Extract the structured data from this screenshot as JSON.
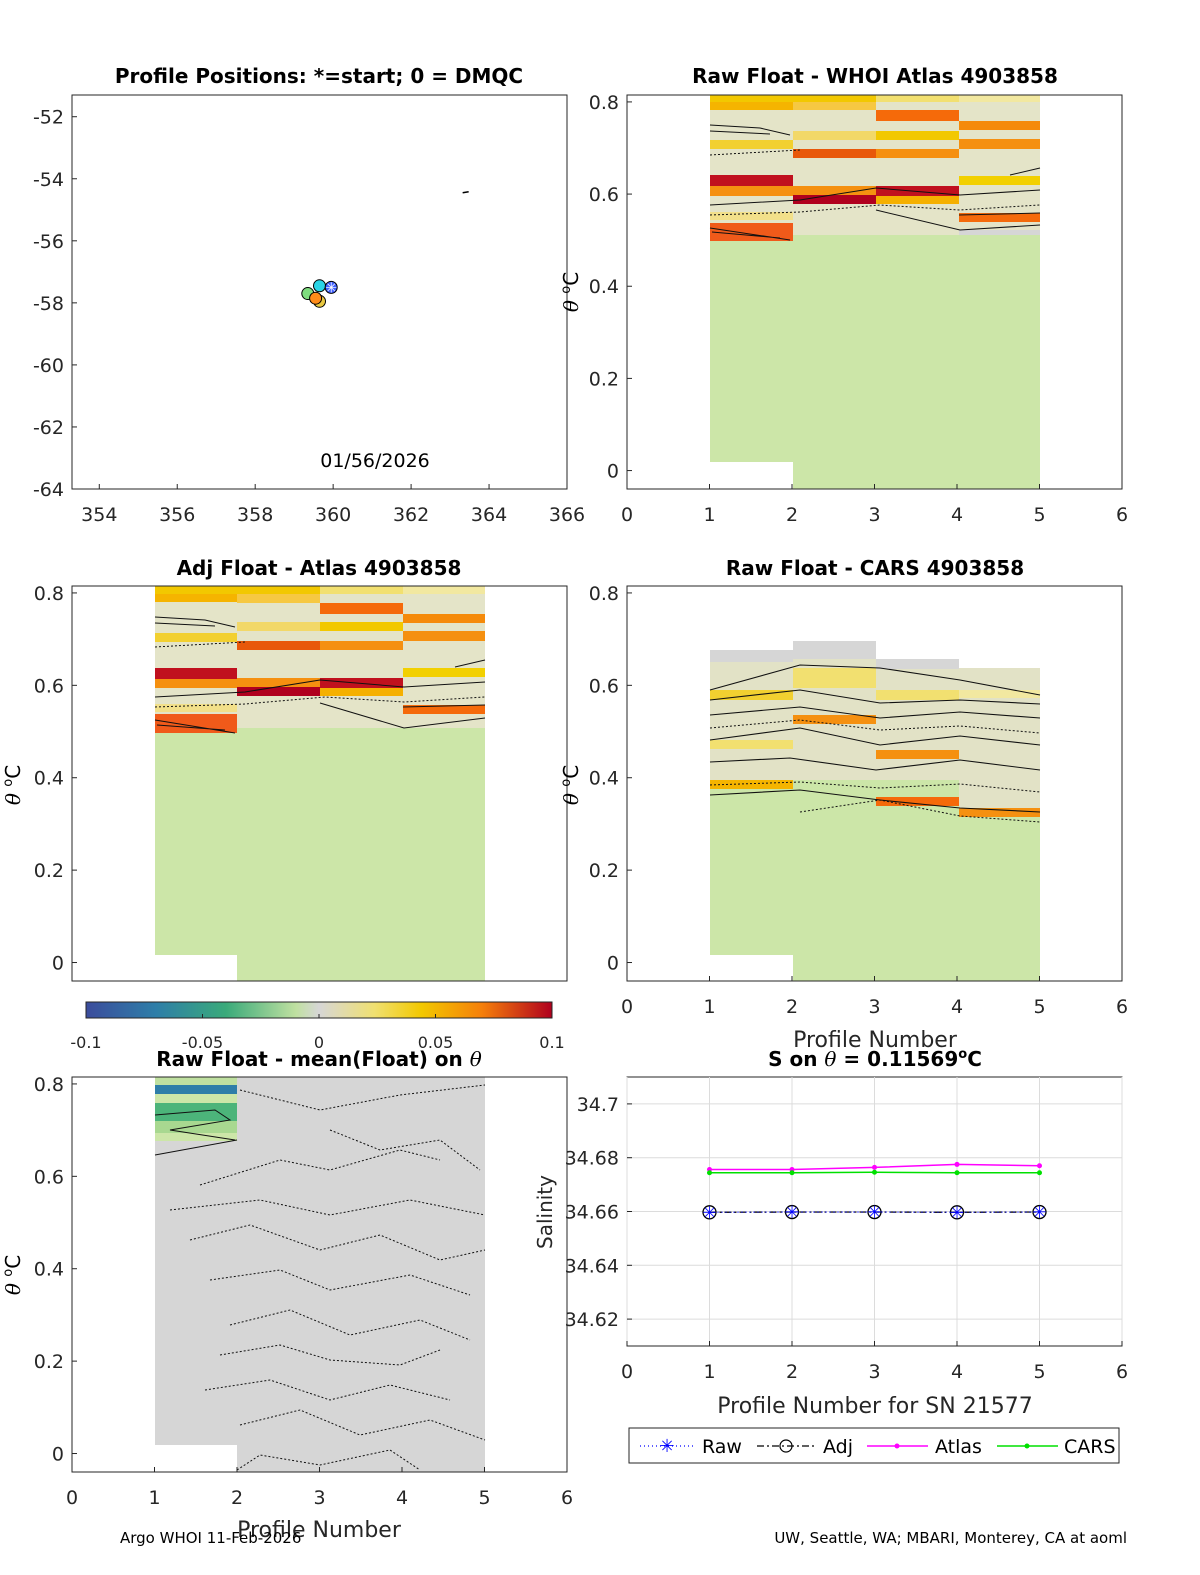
{
  "footer": {
    "left": "Argo WHOI 11-Feb-2026",
    "right": "UW, Seattle, WA; MBARI, Monterey, CA at aoml"
  },
  "colors": {
    "axis": "#262626",
    "grid": "#dcdcdc",
    "neutral": "#d6d6d6",
    "light_green": "#cce6a8",
    "raw_line": "#0000ff",
    "adj_line": "#1a1a40",
    "atlas_line": "#ff00ff",
    "cars_line": "#00e000"
  },
  "colorbar": {
    "min": -0.1,
    "max": 0.1,
    "tick_values": [
      -0.1,
      -0.05,
      0,
      0.05,
      0.1
    ],
    "tick_labels": [
      "-0.1",
      "-0.05",
      "0",
      "0.05",
      "0.1"
    ]
  },
  "chart_data": [
    {
      "id": "positions",
      "type": "scatter",
      "title": "Profile Positions: *=start; 0 = DMQC",
      "xlim": [
        353.3,
        366
      ],
      "ylim": [
        -64,
        -51.3
      ],
      "xticks": [
        354,
        356,
        358,
        360,
        362,
        364,
        366
      ],
      "yticks": [
        -52,
        -54,
        -56,
        -58,
        -60,
        -62,
        -64
      ],
      "annotation": "01/56/2026",
      "points": [
        {
          "lon": 359.35,
          "lat": -57.7,
          "color": "#7fdc7f"
        },
        {
          "lon": 359.65,
          "lat": -57.95,
          "color": "#e8c840"
        },
        {
          "lon": 359.55,
          "lat": -57.85,
          "color": "#ff8c1a"
        },
        {
          "lon": 359.65,
          "lat": -57.45,
          "color": "#2ad4e6"
        },
        {
          "lon": 359.95,
          "lat": -57.5,
          "color": "#4060ff",
          "marker": "start"
        }
      ],
      "contour_mark": {
        "lon": 363.4,
        "lat": -54.45
      }
    },
    {
      "id": "raw_whoi",
      "type": "heatmap",
      "title": "Raw Float - WHOI Atlas  4903858",
      "xlabel": "",
      "ylabel": "θ °C",
      "xlim": [
        0,
        6
      ],
      "ylim": [
        -0.04,
        0.815
      ],
      "xticks": [
        0,
        1,
        2,
        3,
        4,
        5,
        6
      ],
      "yticks": [
        0,
        0.2,
        0.4,
        0.6,
        0.8
      ],
      "ytick_labels": [
        "0",
        "0.2",
        "0.4",
        "0.6",
        "0.8"
      ]
    },
    {
      "id": "adj_atlas",
      "type": "heatmap",
      "title": "Adj Float - Atlas  4903858",
      "xlabel": "",
      "ylabel": "θ °C",
      "xlim": [
        0,
        5
      ],
      "ylim": [
        -0.04,
        0.815
      ],
      "xticks": [],
      "yticks": [
        0,
        0.2,
        0.4,
        0.6,
        0.8
      ],
      "ytick_labels": [
        "0",
        "0.2",
        "0.4",
        "0.6",
        "0.8"
      ]
    },
    {
      "id": "raw_cars",
      "type": "heatmap",
      "title": "Raw Float - CARS  4903858",
      "xlabel": "Profile Number",
      "ylabel": "θ °C",
      "xlim": [
        0,
        6
      ],
      "ylim": [
        -0.04,
        0.815
      ],
      "xticks": [
        0,
        1,
        2,
        3,
        4,
        5,
        6
      ],
      "yticks": [
        0,
        0.2,
        0.4,
        0.6,
        0.8
      ],
      "ytick_labels": [
        "0",
        "0.2",
        "0.4",
        "0.6",
        "0.8"
      ]
    },
    {
      "id": "raw_mean",
      "type": "heatmap",
      "title": "Raw Float - mean(Float) on θ",
      "xlabel": "Profile Number",
      "ylabel": "θ °C",
      "xlim": [
        0,
        6
      ],
      "ylim": [
        -0.04,
        0.815
      ],
      "xticks": [
        0,
        1,
        2,
        3,
        4,
        5,
        6
      ],
      "yticks": [
        0,
        0.2,
        0.4,
        0.6,
        0.8
      ],
      "ytick_labels": [
        "0",
        "0.2",
        "0.4",
        "0.6",
        "0.8"
      ]
    },
    {
      "id": "salinity",
      "type": "line",
      "title": "S on θ = 0.11569°C",
      "xlabel": "Profile Number for SN 21577",
      "ylabel": "Salinity",
      "xlim": [
        0,
        6
      ],
      "ylim": [
        34.61,
        34.71
      ],
      "xticks": [
        0,
        1,
        2,
        3,
        4,
        5,
        6
      ],
      "yticks": [
        34.62,
        34.64,
        34.66,
        34.68,
        34.7
      ],
      "ytick_labels": [
        "34.62",
        "34.64",
        "34.66",
        "34.68",
        "34.7"
      ],
      "x": [
        1,
        2,
        3,
        4,
        5
      ],
      "series": [
        {
          "name": "Raw",
          "values": [
            34.6597,
            34.6598,
            34.6598,
            34.6597,
            34.6598
          ]
        },
        {
          "name": "Adj",
          "values": [
            34.6597,
            34.6598,
            34.6598,
            34.6597,
            34.6598
          ]
        },
        {
          "name": "Atlas",
          "values": [
            34.6756,
            34.6756,
            34.6764,
            34.6775,
            34.677
          ]
        },
        {
          "name": "CARS",
          "values": [
            34.6744,
            34.6744,
            34.6746,
            34.6744,
            34.6744
          ]
        }
      ],
      "legend": [
        "Raw",
        "Adj",
        "Atlas",
        "CARS"
      ]
    }
  ]
}
